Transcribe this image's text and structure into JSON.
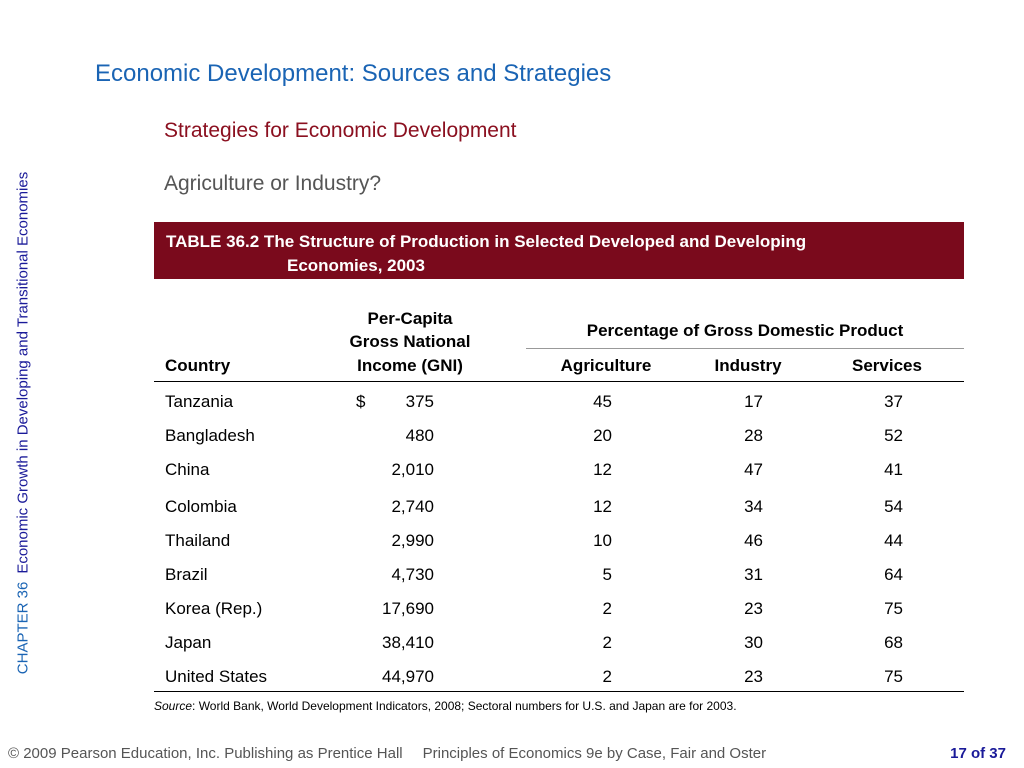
{
  "side": {
    "chapter": "CHAPTER 36",
    "title": "Economic Growth in Developing and Transitional Economies"
  },
  "slide": {
    "title": "Economic Development:  Sources and Strategies",
    "subtitle": "Strategies for Economic Development",
    "question": "Agriculture or Industry?"
  },
  "table": {
    "caption_line1": "TABLE 36.2  The Structure of Production in Selected Developed and Developing",
    "caption_line2": "Economies, 2003",
    "headers": {
      "country": "Country",
      "gni_line1": "Per-Capita",
      "gni_line2": "Gross National",
      "gni_line3": "Income (GNI)",
      "gdp_group": "Percentage of Gross Domestic Product",
      "agriculture": "Agriculture",
      "industry": "Industry",
      "services": "Services"
    },
    "currency": "$",
    "rows": [
      {
        "country": "Tanzania",
        "gni": "375",
        "agriculture": "45",
        "industry": "17",
        "services": "37"
      },
      {
        "country": "Bangladesh",
        "gni": "480",
        "agriculture": "20",
        "industry": "28",
        "services": "52"
      },
      {
        "country": "China",
        "gni": "2,010",
        "agriculture": "12",
        "industry": "47",
        "services": "41"
      },
      {
        "country": "Colombia",
        "gni": "2,740",
        "agriculture": "12",
        "industry": "34",
        "services": "54"
      },
      {
        "country": "Thailand",
        "gni": "2,990",
        "agriculture": "10",
        "industry": "46",
        "services": "44"
      },
      {
        "country": "Brazil",
        "gni": "4,730",
        "agriculture": "5",
        "industry": "31",
        "services": "64"
      },
      {
        "country": "Korea (Rep.)",
        "gni": "17,690",
        "agriculture": "2",
        "industry": "23",
        "services": "75"
      },
      {
        "country": "Japan",
        "gni": "38,410",
        "agriculture": "2",
        "industry": "30",
        "services": "68"
      },
      {
        "country": "United States",
        "gni": "44,970",
        "agriculture": "2",
        "industry": "23",
        "services": "75"
      }
    ],
    "source_label": "Source",
    "source_text": ":  World Bank, World Development Indicators, 2008; Sectoral numbers for U.S. and Japan are for 2003."
  },
  "footer": {
    "copyright": "© 2009 Pearson Education, Inc. Publishing as Prentice Hall",
    "book": "Principles of Economics 9e by Case, Fair and Oster",
    "page": "17 of 37"
  }
}
